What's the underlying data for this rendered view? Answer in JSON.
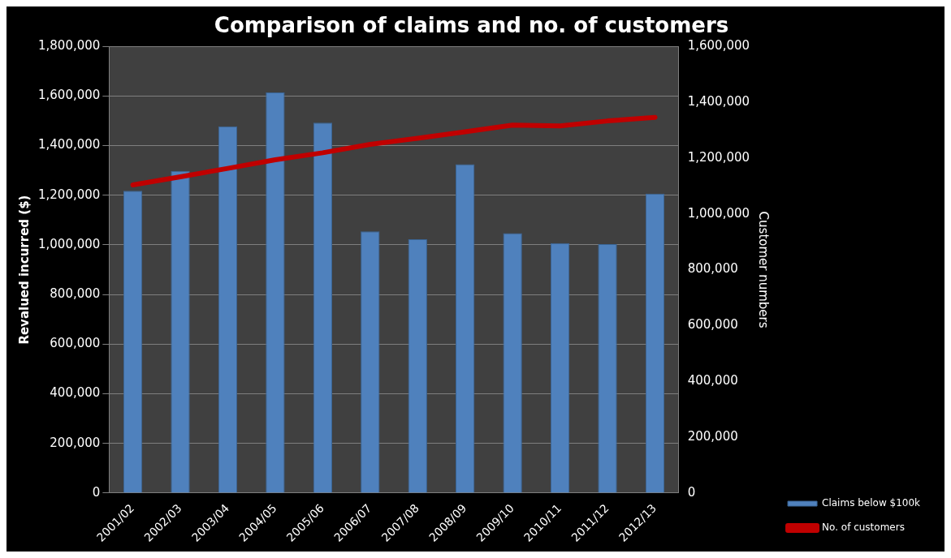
{
  "chart_data": {
    "type": "bar",
    "title": "Comparison of claims and no. of customers",
    "ylabel": "Revalued incurred ($)",
    "y2label": "Customer numbers",
    "categories": [
      "2001/02",
      "2002/03",
      "2003/04",
      "2004/05",
      "2005/06",
      "2006/07",
      "2007/08",
      "2008/09",
      "2009/10",
      "2010/11",
      "2011/12",
      "2012/13"
    ],
    "series": [
      {
        "name": "Claims below $100k",
        "color": "#4f81bd",
        "values": [
          1218000,
          1298000,
          1478000,
          1614000,
          1493000,
          1055000,
          1023000,
          1325000,
          1047000,
          1007000,
          1003000,
          1207000
        ]
      },
      {
        "name": "No. of customers",
        "type": "line",
        "axis": "y2",
        "color": "#c00000",
        "values": [
          1104000,
          1133000,
          1163000,
          1194000,
          1219000,
          1249000,
          1271000,
          1294000,
          1318000,
          1315000,
          1333000,
          1346000
        ]
      }
    ],
    "ylim": [
      0,
      1800000
    ],
    "yticks": [
      {
        "value": 0,
        "label": "0"
      },
      {
        "value": 200000,
        "label": "200,000"
      },
      {
        "value": 400000,
        "label": "400,000"
      },
      {
        "value": 600000,
        "label": "600,000"
      },
      {
        "value": 800000,
        "label": "800,000"
      },
      {
        "value": 1000000,
        "label": "1,000,000"
      },
      {
        "value": 1200000,
        "label": "1,200,000"
      },
      {
        "value": 1400000,
        "label": "1,400,000"
      },
      {
        "value": 1600000,
        "label": "1,600,000"
      },
      {
        "value": 1800000,
        "label": "1,800,000"
      }
    ],
    "y2lim": [
      0,
      1600000
    ],
    "y2ticks": [
      {
        "value": 0,
        "label": "0"
      },
      {
        "value": 200000,
        "label": "200,000"
      },
      {
        "value": 400000,
        "label": "400,000"
      },
      {
        "value": 600000,
        "label": "600,000"
      },
      {
        "value": 800000,
        "label": "800,000"
      },
      {
        "value": 1000000,
        "label": "1,000,000"
      },
      {
        "value": 1200000,
        "label": "1,200,000"
      },
      {
        "value": 1400000,
        "label": "1,400,000"
      },
      {
        "value": 1600000,
        "label": "1,600,000"
      }
    ],
    "grid": "y",
    "legend": "bottom right",
    "marker": "none",
    "line_style": "solid"
  }
}
